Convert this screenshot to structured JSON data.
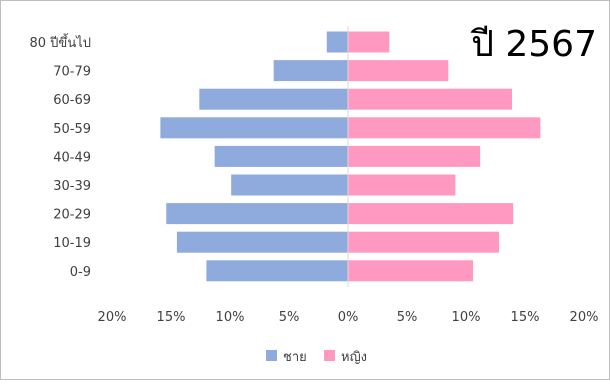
{
  "chart_data": {
    "type": "bar",
    "orientation": "horizontal",
    "layout": "population-pyramid",
    "title": "ปี 2567",
    "categories": [
      "80 ปีขึ้นไป",
      "70-79",
      "60-69",
      "50-59",
      "40-49",
      "30-39",
      "20-29",
      "10-19",
      "0-9"
    ],
    "series": [
      {
        "name": "ชาย",
        "color": "#8faadc",
        "side": "left",
        "values": [
          1.8,
          6.3,
          12.6,
          15.9,
          11.3,
          9.9,
          15.4,
          14.5,
          12.0
        ]
      },
      {
        "name": "หญิง",
        "color": "#ff99c2",
        "side": "right",
        "values": [
          3.5,
          8.5,
          13.9,
          16.3,
          11.2,
          9.1,
          14.0,
          12.8,
          10.6
        ]
      }
    ],
    "xlim": [
      -20,
      20
    ],
    "x_ticks": [
      -20,
      -15,
      -10,
      -5,
      0,
      5,
      10,
      15,
      20
    ],
    "x_tick_labels": [
      "20%",
      "15%",
      "10%",
      "5%",
      "0%",
      "5%",
      "10%",
      "15%",
      "20%"
    ],
    "grid": false,
    "legend_position": "bottom"
  }
}
